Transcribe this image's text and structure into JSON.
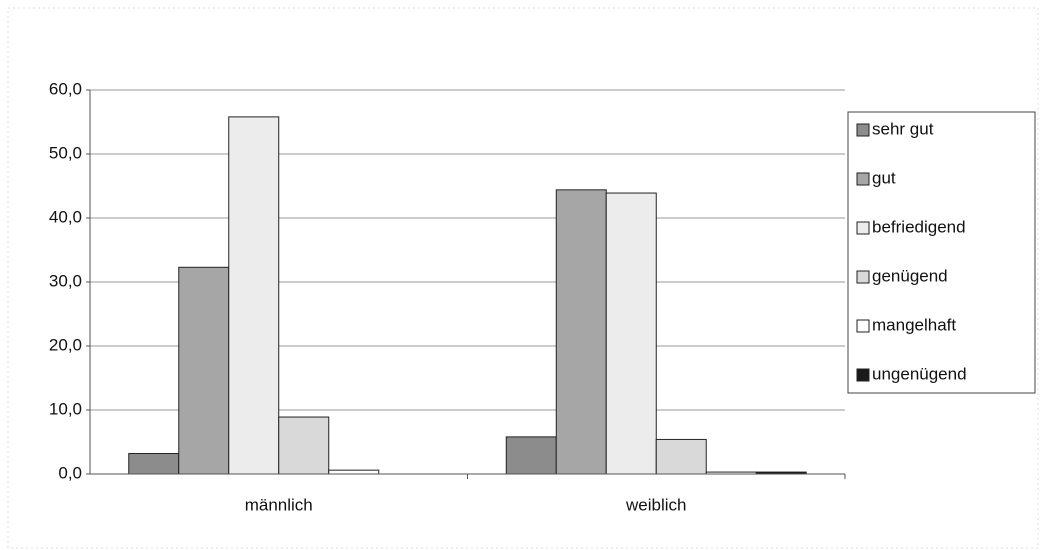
{
  "chart_data": {
    "type": "bar",
    "categories": [
      "männlich",
      "weiblich"
    ],
    "series": [
      {
        "name": "sehr gut",
        "color": "#8c8c8c",
        "values": [
          3.2,
          5.8
        ]
      },
      {
        "name": "gut",
        "color": "#a6a6a6",
        "values": [
          32.3,
          44.4
        ]
      },
      {
        "name": "befriedigend",
        "color": "#ececec",
        "values": [
          55.8,
          43.9
        ]
      },
      {
        "name": "genügend",
        "color": "#d9d9d9",
        "values": [
          8.9,
          5.4
        ]
      },
      {
        "name": "mangelhaft",
        "color": "#ffffff",
        "values": [
          0.6,
          0.3
        ]
      },
      {
        "name": "ungenügend",
        "color": "#1a1a1a",
        "values": [
          0,
          0.3
        ]
      }
    ],
    "ylim": [
      0,
      60
    ],
    "yticks": [
      {
        "value": 0,
        "label": "0,0"
      },
      {
        "value": 10,
        "label": "10,0"
      },
      {
        "value": 20,
        "label": "20,0"
      },
      {
        "value": 30,
        "label": "30,0"
      },
      {
        "value": 40,
        "label": "40,0"
      },
      {
        "value": 50,
        "label": "50,0"
      },
      {
        "value": 60,
        "label": "60,0"
      }
    ],
    "grid": true,
    "legend": "right"
  }
}
